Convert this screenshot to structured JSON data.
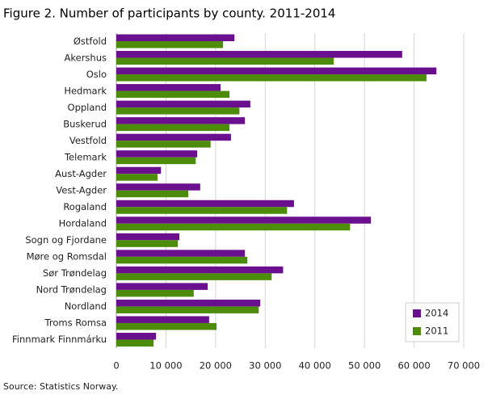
{
  "chart_data": {
    "type": "hbar",
    "title": "Figure 2. Number of participants by county. 2011-2014",
    "source": "Source: Statistics Norway.",
    "categories": [
      "Østfold",
      "Akershus",
      "Oslo",
      "Hedmark",
      "Oppland",
      "Buskerud",
      "Vestfold",
      "Telemark",
      "Aust-Agder",
      "Vest-Agder",
      "Rogaland",
      "Hordaland",
      "Sogn og Fjordane",
      "Møre og Romsdal",
      "Sør Trøndelag",
      "Nord Trøndelag",
      "Nordland",
      "Troms Romsa",
      "Finnmark Finnmárku"
    ],
    "series": [
      {
        "name": "2014",
        "color": "#6a0f8e",
        "values": [
          23800,
          57600,
          64500,
          21000,
          27000,
          25900,
          23100,
          16300,
          9000,
          16900,
          35800,
          51300,
          12700,
          25900,
          33600,
          18400,
          29000,
          18700,
          8000
        ]
      },
      {
        "name": "2011",
        "color": "#4c8c0a",
        "values": [
          21500,
          43800,
          62500,
          22800,
          24800,
          22800,
          19000,
          16000,
          8300,
          14500,
          34400,
          47100,
          12400,
          26400,
          31300,
          15600,
          28700,
          20200,
          7500
        ]
      }
    ],
    "xlim": [
      0,
      70000
    ],
    "xticks": [
      0,
      {
        "value": 10000,
        "label": "10 000"
      },
      {
        "value": 20000,
        "label": "20 000"
      },
      {
        "value": 30000,
        "label": "30 000"
      },
      {
        "value": 40000,
        "label": "40 000"
      },
      {
        "value": 50000,
        "label": "50 000"
      },
      {
        "value": 60000,
        "label": "60 000"
      },
      {
        "value": 70000,
        "label": "70 000"
      }
    ],
    "grid": true,
    "legend": "lower right"
  }
}
